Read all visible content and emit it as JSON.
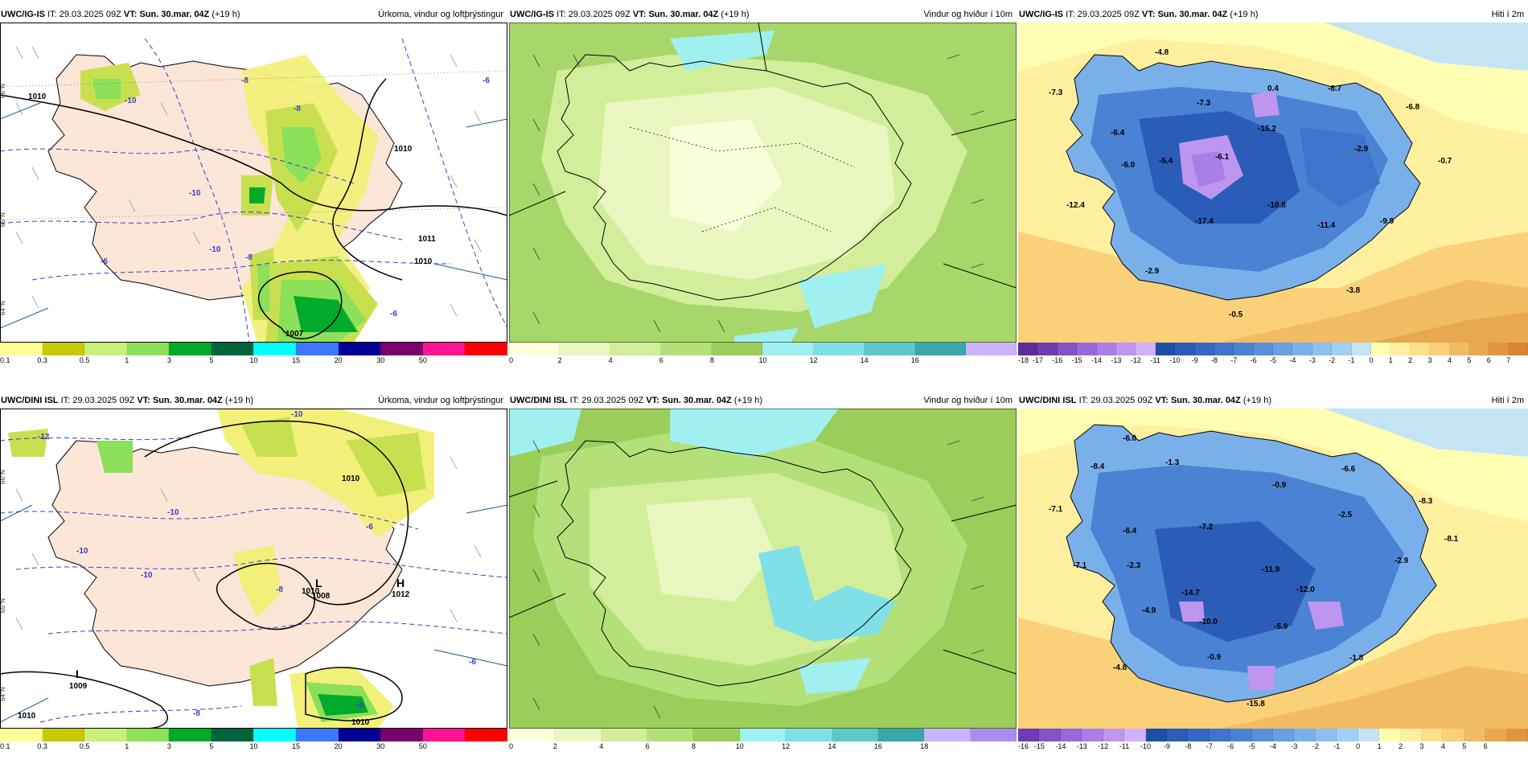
{
  "header": {
    "it_label": "IT:",
    "vt_label": "VT:",
    "it_value": "29.03.2025 09Z",
    "vt_value": "Sun. 30.mar. 04Z",
    "lead": "(+19 h)"
  },
  "rows": [
    {
      "model": "UWC/IG-IS",
      "panels": {
        "precip": {
          "title": "Úrkoma, vindur og loftþrýstingur",
          "pressure_labels": [
            "1007",
            "1011"
          ],
          "isotherm_labels": [
            "-10",
            "-8",
            "-6",
            "-10",
            "-8",
            "-8",
            "-6",
            "-10",
            "-6"
          ],
          "isobar_labels": [
            "1010",
            "1010",
            "1010"
          ],
          "lat_labels": [
            "66°N",
            "65°N",
            "64°N"
          ]
        },
        "wind": {
          "title": "Vindur og hviður í 10m"
        },
        "temp": {
          "title": "Hiti í 2m",
          "labels": [
            "-4.8",
            "-7.3",
            "-6.4",
            "-6.0",
            "-12.4",
            "-5.4",
            "-7.3",
            "0.4",
            "-8.7",
            "-6.8",
            "-15.2",
            "-6.1",
            "-2.9",
            "-0.7",
            "-10.8",
            "-17.4",
            "-11.4",
            "-9.9",
            "-2.9",
            "-3.8",
            "-0.5"
          ]
        }
      },
      "colorbars": {
        "precip": {
          "ticks": [
            "0.1",
            "0.3",
            "0.5",
            "1",
            "3",
            "5",
            "10",
            "15",
            "20",
            "30",
            "50"
          ],
          "colors": [
            "#ffff99",
            "#c8c800",
            "#c8f07a",
            "#8ce05a",
            "#00aa2a",
            "#00643c",
            "#00ffff",
            "#3c78ff",
            "#000096",
            "#7a006e",
            "#ff1493",
            "#ff0000"
          ]
        },
        "wind": {
          "ticks": [
            "0",
            "2",
            "4",
            "6",
            "8",
            "10",
            "12",
            "14",
            "16"
          ],
          "colors": [
            "#ffffe0",
            "#eaf7c0",
            "#d2ee9a",
            "#b4e07a",
            "#9acd5a",
            "#a0f0f0",
            "#80e0e8",
            "#5cc8c8",
            "#3aa8a8",
            "#c8b4ff"
          ]
        },
        "temp": {
          "ticks": [
            "-18",
            "-17",
            "-16",
            "-15",
            "-14",
            "-13",
            "-12",
            "-11",
            "-10",
            "-9",
            "-8",
            "-7",
            "-6",
            "-5",
            "-4",
            "-3",
            "-2",
            "-1",
            "0",
            "1",
            "2",
            "3",
            "4",
            "5",
            "6",
            "7"
          ],
          "colors": [
            "#5a2d9a",
            "#6e3cb4",
            "#8252c8",
            "#9668dc",
            "#aa7ee6",
            "#be96f0",
            "#d2b0fa",
            "#1e4ea8",
            "#2a5cb8",
            "#3468c4",
            "#3e74cc",
            "#4a82d4",
            "#5890dc",
            "#68a0e2",
            "#7ab0ea",
            "#8cc0f0",
            "#a0d0f4",
            "#c4e4f4",
            "#ffffb4",
            "#fff0a0",
            "#fde08a",
            "#fad078",
            "#f2bc64",
            "#e8a850",
            "#e09640",
            "#d88430"
          ]
        }
      }
    },
    {
      "model": "UWC/DINI ISL",
      "panels": {
        "precip": {
          "title": "Úrkoma, vindur og loftþrýstingur",
          "pressure_labels": [
            "1008",
            "1012",
            "1009"
          ],
          "low_labels": [
            "L",
            "L",
            "H"
          ],
          "isotherm_labels": [
            "-12",
            "-10",
            "-10",
            "-8",
            "-10",
            "-6",
            "-6",
            "-6",
            "-8",
            "-10"
          ],
          "isobar_labels": [
            "1010",
            "1010",
            "1010",
            "1010"
          ],
          "lat_labels": [
            "66°N",
            "65°N",
            "64°N"
          ]
        },
        "wind": {
          "title": "Vindur og hviður í 10m"
        },
        "temp": {
          "title": "Hiti í 2m",
          "labels": [
            "-6.0",
            "-8.4",
            "-1.3",
            "-7.1",
            "-6.4",
            "-7.2",
            "-0.9",
            "-6.6",
            "-8.3",
            "-2.5",
            "-8.1",
            "-7.1",
            "-2.3",
            "-11.9",
            "-2.9",
            "-14.7",
            "-12.0",
            "-4.9",
            "-10.0",
            "-5.9",
            "-0.9",
            "-1.8",
            "-4.8",
            "-15.8"
          ]
        }
      },
      "colorbars": {
        "precip": {
          "ticks": [
            "0.1",
            "0.3",
            "0.5",
            "1",
            "3",
            "5",
            "10",
            "15",
            "20",
            "30",
            "50"
          ],
          "colors": [
            "#ffff99",
            "#c8c800",
            "#c8f07a",
            "#8ce05a",
            "#00aa2a",
            "#00643c",
            "#00ffff",
            "#3c78ff",
            "#000096",
            "#7a006e",
            "#ff1493",
            "#ff0000"
          ]
        },
        "wind": {
          "ticks": [
            "0",
            "2",
            "4",
            "6",
            "8",
            "10",
            "12",
            "14",
            "16",
            "18"
          ],
          "colors": [
            "#ffffe0",
            "#eaf7c0",
            "#d2ee9a",
            "#b4e07a",
            "#9acd5a",
            "#a0f0f0",
            "#80e0e8",
            "#5cc8c8",
            "#3aa8a8",
            "#c8b4ff",
            "#a88ef0"
          ]
        },
        "temp": {
          "ticks": [
            "-16",
            "-15",
            "-14",
            "-13",
            "-12",
            "-11",
            "-10",
            "-9",
            "-8",
            "-7",
            "-6",
            "-5",
            "-4",
            "-3",
            "-2",
            "-1",
            "0",
            "1",
            "2",
            "3",
            "4",
            "5",
            "6"
          ],
          "colors": [
            "#6e3cb4",
            "#8252c8",
            "#9668dc",
            "#aa7ee6",
            "#be96f0",
            "#d2b0fa",
            "#1e4ea8",
            "#2a5cb8",
            "#3468c4",
            "#3e74cc",
            "#4a82d4",
            "#5890dc",
            "#68a0e2",
            "#7ab0ea",
            "#8cc0f0",
            "#a0d0f4",
            "#c4e4f4",
            "#ffffb4",
            "#fff0a0",
            "#fde08a",
            "#fad078",
            "#f2bc64",
            "#e8a850",
            "#e09640"
          ]
        }
      }
    }
  ]
}
